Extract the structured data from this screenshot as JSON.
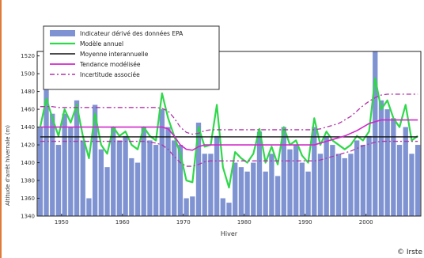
{
  "copyright": "© Irste",
  "chart_data": {
    "type": "bar",
    "title": "",
    "xlabel": "Hiver",
    "ylabel": "Altitude d'arrêt hivernale (m)",
    "xlim": [
      1946,
      2009
    ],
    "ylim": [
      1340,
      1525
    ],
    "xticks": [
      1950,
      1960,
      1970,
      1980,
      1990,
      2000
    ],
    "yticks": [
      1340,
      1360,
      1380,
      1400,
      1420,
      1440,
      1460,
      1480,
      1500,
      1520
    ],
    "grid": false,
    "legend_position": "top-left",
    "colors": {
      "bars": "#7f93d2",
      "model": "#2fd84a",
      "mean": "#111111",
      "trend": "#d028c8",
      "uncertainty": "#b034a8",
      "frame": "#222222"
    },
    "years": [
      1946,
      1947,
      1948,
      1949,
      1950,
      1951,
      1952,
      1953,
      1954,
      1955,
      1956,
      1957,
      1958,
      1959,
      1960,
      1961,
      1962,
      1963,
      1964,
      1965,
      1966,
      1967,
      1968,
      1969,
      1970,
      1971,
      1972,
      1973,
      1974,
      1975,
      1976,
      1977,
      1978,
      1979,
      1980,
      1981,
      1982,
      1983,
      1984,
      1985,
      1986,
      1987,
      1988,
      1989,
      1990,
      1991,
      1992,
      1993,
      1994,
      1995,
      1996,
      1997,
      1998,
      1999,
      2000,
      2001,
      2002,
      2003,
      2004,
      2005,
      2006,
      2007,
      2008
    ],
    "series": [
      {
        "name": "Indicateur dérivé des données EPA",
        "kind": "bar",
        "values": [
          1440,
          1482,
          1455,
          1420,
          1455,
          1440,
          1470,
          1425,
          1360,
          1465,
          1415,
          1395,
          1440,
          1425,
          1430,
          1405,
          1400,
          1440,
          1425,
          1420,
          1460,
          1440,
          1425,
          1420,
          1360,
          1362,
          1445,
          1410,
          1410,
          1430,
          1360,
          1355,
          1400,
          1395,
          1390,
          1400,
          1435,
          1390,
          1410,
          1385,
          1440,
          1415,
          1420,
          1400,
          1390,
          1440,
          1410,
          1430,
          1420,
          1410,
          1405,
          1410,
          1425,
          1420,
          1430,
          1525,
          1470,
          1460,
          1450,
          1420,
          1440,
          1410,
          1420
        ]
      },
      {
        "name": "Modèle annuel",
        "kind": "line",
        "values": [
          1440,
          1472,
          1450,
          1430,
          1460,
          1445,
          1465,
          1430,
          1405,
          1455,
          1420,
          1410,
          1440,
          1430,
          1435,
          1420,
          1415,
          1440,
          1430,
          1425,
          1478,
          1450,
          1430,
          1410,
          1380,
          1378,
          1440,
          1418,
          1420,
          1465,
          1395,
          1372,
          1412,
          1405,
          1400,
          1410,
          1438,
          1400,
          1418,
          1398,
          1440,
          1420,
          1425,
          1408,
          1400,
          1450,
          1420,
          1435,
          1425,
          1420,
          1415,
          1420,
          1430,
          1425,
          1435,
          1495,
          1460,
          1470,
          1450,
          1440,
          1465,
          1425,
          1430
        ]
      },
      {
        "name": "Moyenne interannuelle",
        "kind": "line",
        "values": [
          1429,
          1429,
          1429,
          1429,
          1429,
          1429,
          1429,
          1429,
          1429,
          1429,
          1429,
          1429,
          1429,
          1429,
          1429,
          1429,
          1429,
          1429,
          1429,
          1429,
          1429,
          1429,
          1429,
          1429,
          1429,
          1429,
          1429,
          1429,
          1429,
          1429,
          1429,
          1429,
          1429,
          1429,
          1429,
          1429,
          1429,
          1429,
          1429,
          1429,
          1429,
          1429,
          1429,
          1429,
          1429,
          1429,
          1429,
          1429,
          1429,
          1429,
          1429,
          1429,
          1429,
          1429,
          1429,
          1429,
          1429,
          1429,
          1429,
          1429,
          1429,
          1429,
          1429
        ]
      },
      {
        "name": "Tendance modélisée",
        "kind": "line",
        "values": [
          1440,
          1440,
          1440,
          1440,
          1440,
          1440,
          1440,
          1440,
          1440,
          1440,
          1440,
          1440,
          1440,
          1440,
          1440,
          1440,
          1440,
          1440,
          1440,
          1440,
          1440,
          1438,
          1430,
          1420,
          1415,
          1414,
          1418,
          1420,
          1420,
          1420,
          1420,
          1420,
          1420,
          1420,
          1420,
          1420,
          1420,
          1420,
          1420,
          1420,
          1420,
          1420,
          1420,
          1420,
          1420,
          1420,
          1422,
          1424,
          1426,
          1428,
          1430,
          1433,
          1436,
          1440,
          1444,
          1446,
          1448,
          1448,
          1448,
          1448,
          1448,
          1448,
          1448
        ]
      },
      {
        "name": "Incertitude associée",
        "kind": "line",
        "dashed": true,
        "upper": [
          1463,
          1463,
          1463,
          1462,
          1462,
          1462,
          1462,
          1462,
          1462,
          1462,
          1462,
          1462,
          1462,
          1462,
          1462,
          1462,
          1462,
          1462,
          1462,
          1462,
          1461,
          1458,
          1450,
          1440,
          1434,
          1432,
          1433,
          1436,
          1437,
          1437,
          1437,
          1437,
          1437,
          1437,
          1437,
          1437,
          1437,
          1437,
          1437,
          1437,
          1437,
          1437,
          1437,
          1437,
          1437,
          1437,
          1438,
          1440,
          1442,
          1444,
          1448,
          1452,
          1458,
          1464,
          1469,
          1473,
          1476,
          1477,
          1477,
          1477,
          1477,
          1477,
          1477
        ],
        "lower": [
          1424,
          1424,
          1424,
          1424,
          1424,
          1424,
          1424,
          1424,
          1424,
          1424,
          1424,
          1424,
          1424,
          1424,
          1424,
          1424,
          1424,
          1424,
          1423,
          1422,
          1420,
          1415,
          1407,
          1400,
          1396,
          1396,
          1398,
          1401,
          1402,
          1402,
          1402,
          1402,
          1402,
          1402,
          1402,
          1402,
          1402,
          1402,
          1402,
          1402,
          1402,
          1402,
          1402,
          1402,
          1402,
          1402,
          1403,
          1405,
          1407,
          1409,
          1411,
          1413,
          1416,
          1419,
          1421,
          1423,
          1424,
          1424,
          1424,
          1424,
          1424,
          1424,
          1424
        ]
      }
    ]
  }
}
